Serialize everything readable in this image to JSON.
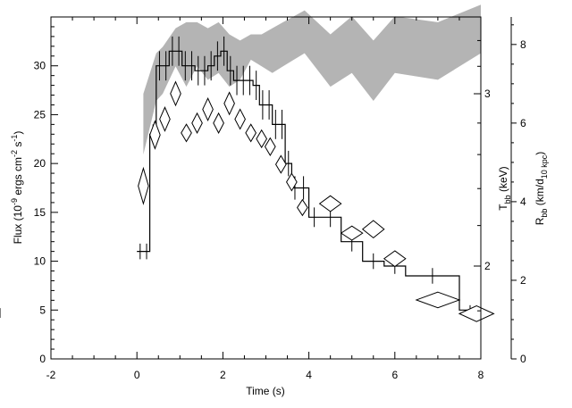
{
  "chart_data": {
    "type": "scatter",
    "x_axis": {
      "label": "Time (s)",
      "range": [
        -2,
        8
      ],
      "ticks": [
        -2,
        0,
        2,
        4,
        6,
        8
      ]
    },
    "y_left_axis": {
      "label_main": "Flux (10",
      "label_exp1": "-9",
      "label_mid": " ergs cm",
      "label_exp2": "-2",
      "label_mid2": " s",
      "label_exp3": "-1",
      "label_end": ")",
      "range": [
        0,
        35
      ],
      "ticks": [
        0,
        5,
        10,
        15,
        20,
        25,
        30
      ]
    },
    "y_right_inner_axis": {
      "label_main": "T",
      "label_sub": "bb",
      "label_end": " (keV)",
      "scale": "log",
      "ticks": [
        2,
        3
      ]
    },
    "y_right_outer_axis": {
      "label_main": "R",
      "label_sub1": "bb",
      "label_mid": " (km/d",
      "label_sub2": "10 kpc",
      "label_end": ")",
      "range": [
        0,
        8.7
      ],
      "ticks": [
        0,
        2,
        4,
        6,
        8
      ]
    },
    "series": [
      {
        "kind": "flux_histogram",
        "edges": [
          0.0,
          0.15,
          0.3,
          0.45,
          0.6,
          0.75,
          0.9,
          1.05,
          1.2,
          1.35,
          1.5,
          1.65,
          1.8,
          1.95,
          2.1,
          2.25,
          2.4,
          2.55,
          2.7,
          2.85,
          3.0,
          3.15,
          3.3,
          3.45,
          3.6,
          3.75,
          4.0,
          4.25,
          4.75,
          5.25,
          5.75,
          6.25,
          7.5,
          8.0
        ],
        "values": [
          11.0,
          11.0,
          23.0,
          30.0,
          30.0,
          31.5,
          31.5,
          30.0,
          30.0,
          29.5,
          29.5,
          30.0,
          31.0,
          31.5,
          29.5,
          28.5,
          28.5,
          28.5,
          28.0,
          26.0,
          26.0,
          24.0,
          24.0,
          20.0,
          17.5,
          17.5,
          14.5,
          14.5,
          12.0,
          10.0,
          9.5,
          8.5,
          5.0,
          4.7
        ],
        "errors": [
          0.8,
          0.8,
          1.0,
          1.5,
          1.5,
          1.5,
          1.5,
          1.5,
          1.5,
          1.5,
          1.5,
          1.5,
          1.5,
          1.5,
          1.5,
          1.5,
          1.5,
          1.5,
          1.5,
          1.5,
          1.5,
          1.5,
          1.5,
          1.3,
          1.2,
          1.2,
          1.0,
          1.0,
          1.0,
          0.8,
          0.8,
          0.8,
          0.5,
          0.5
        ]
      },
      {
        "kind": "radius_diamonds",
        "points": [
          {
            "x": 0.15,
            "y": 4.4,
            "dx": 0.12,
            "dy": 0.45
          },
          {
            "x": 0.42,
            "y": 5.7,
            "dx": 0.12,
            "dy": 0.35
          },
          {
            "x": 0.65,
            "y": 6.1,
            "dx": 0.12,
            "dy": 0.3
          },
          {
            "x": 0.9,
            "y": 6.75,
            "dx": 0.12,
            "dy": 0.3
          },
          {
            "x": 1.15,
            "y": 5.75,
            "dx": 0.12,
            "dy": 0.22
          },
          {
            "x": 1.4,
            "y": 6.0,
            "dx": 0.12,
            "dy": 0.25
          },
          {
            "x": 1.65,
            "y": 6.35,
            "dx": 0.12,
            "dy": 0.28
          },
          {
            "x": 1.9,
            "y": 6.0,
            "dx": 0.12,
            "dy": 0.25
          },
          {
            "x": 2.15,
            "y": 6.5,
            "dx": 0.12,
            "dy": 0.28
          },
          {
            "x": 2.4,
            "y": 6.1,
            "dx": 0.12,
            "dy": 0.25
          },
          {
            "x": 2.65,
            "y": 5.75,
            "dx": 0.12,
            "dy": 0.22
          },
          {
            "x": 2.9,
            "y": 5.6,
            "dx": 0.12,
            "dy": 0.22
          },
          {
            "x": 3.1,
            "y": 5.4,
            "dx": 0.12,
            "dy": 0.22
          },
          {
            "x": 3.35,
            "y": 4.95,
            "dx": 0.12,
            "dy": 0.22
          },
          {
            "x": 3.6,
            "y": 4.5,
            "dx": 0.12,
            "dy": 0.22
          },
          {
            "x": 3.85,
            "y": 3.85,
            "dx": 0.12,
            "dy": 0.2
          },
          {
            "x": 4.5,
            "y": 3.95,
            "dx": 0.25,
            "dy": 0.2
          },
          {
            "x": 5.0,
            "y": 3.2,
            "dx": 0.25,
            "dy": 0.18
          },
          {
            "x": 5.5,
            "y": 3.3,
            "dx": 0.25,
            "dy": 0.22
          },
          {
            "x": 6.0,
            "y": 2.55,
            "dx": 0.25,
            "dy": 0.2
          },
          {
            "x": 7.0,
            "y": 1.5,
            "dx": 0.5,
            "dy": 0.2
          },
          {
            "x": 7.9,
            "y": 1.15,
            "dx": 0.4,
            "dy": 0.2
          }
        ]
      },
      {
        "kind": "temperature_band",
        "x": [
          0.15,
          0.45,
          0.6,
          0.9,
          1.15,
          1.4,
          1.65,
          1.9,
          2.15,
          2.4,
          2.65,
          2.9,
          3.15,
          3.4,
          3.65,
          3.9,
          4.5,
          5.0,
          5.5,
          6.0,
          7.0,
          8.0
        ],
        "upper": [
          3.0,
          3.3,
          3.35,
          3.5,
          3.55,
          3.55,
          3.5,
          3.55,
          3.45,
          3.4,
          3.45,
          3.45,
          3.5,
          3.55,
          3.6,
          3.65,
          3.45,
          3.6,
          3.4,
          3.6,
          3.55,
          3.7
        ],
        "lower": [
          2.6,
          2.95,
          3.0,
          3.2,
          3.05,
          3.2,
          3.1,
          3.15,
          3.05,
          3.1,
          3.25,
          3.2,
          3.15,
          3.2,
          3.25,
          3.3,
          3.05,
          3.15,
          2.95,
          3.15,
          3.1,
          3.3
        ]
      }
    ]
  }
}
